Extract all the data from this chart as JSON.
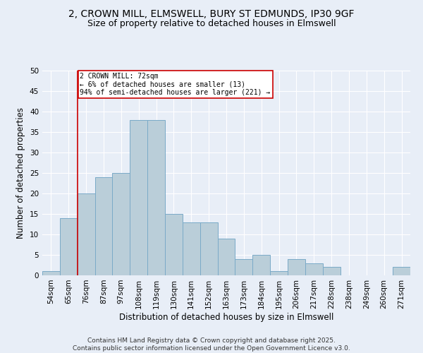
{
  "title_line1": "2, CROWN MILL, ELMSWELL, BURY ST EDMUNDS, IP30 9GF",
  "title_line2": "Size of property relative to detached houses in Elmswell",
  "xlabel": "Distribution of detached houses by size in Elmswell",
  "ylabel": "Number of detached properties",
  "categories": [
    "54sqm",
    "65sqm",
    "76sqm",
    "87sqm",
    "97sqm",
    "108sqm",
    "119sqm",
    "130sqm",
    "141sqm",
    "152sqm",
    "163sqm",
    "173sqm",
    "184sqm",
    "195sqm",
    "206sqm",
    "217sqm",
    "228sqm",
    "238sqm",
    "249sqm",
    "260sqm",
    "271sqm"
  ],
  "values": [
    1,
    14,
    20,
    24,
    25,
    38,
    38,
    15,
    13,
    13,
    9,
    4,
    5,
    1,
    4,
    3,
    2,
    0,
    0,
    0,
    2
  ],
  "bar_color": "#BACED9",
  "bar_edge_color": "#7AAAC8",
  "annotation_title": "2 CROWN MILL: 72sqm",
  "annotation_line2": "← 6% of detached houses are smaller (13)",
  "annotation_line3": "94% of semi-detached houses are larger (221) →",
  "annotation_box_color": "#ffffff",
  "annotation_box_edge": "#cc0000",
  "highlight_line_color": "#cc0000",
  "ylim": [
    0,
    50
  ],
  "yticks": [
    0,
    5,
    10,
    15,
    20,
    25,
    30,
    35,
    40,
    45,
    50
  ],
  "background_color": "#E8EEF7",
  "grid_color": "#ffffff",
  "footer": "Contains HM Land Registry data © Crown copyright and database right 2025.\nContains public sector information licensed under the Open Government Licence v3.0.",
  "title_fontsize": 10,
  "subtitle_fontsize": 9,
  "axis_label_fontsize": 8.5,
  "tick_fontsize": 7.5,
  "footer_fontsize": 6.5
}
